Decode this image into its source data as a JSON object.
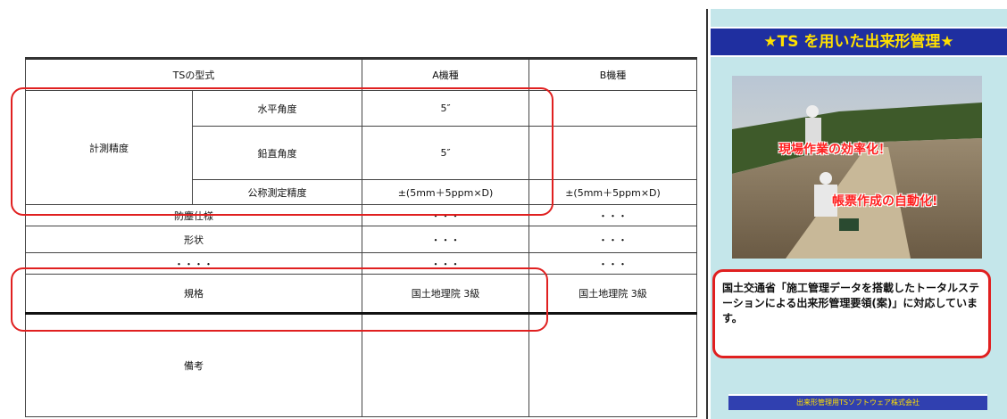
{
  "table": {
    "header": [
      "TSの型式",
      "A機種",
      "B機種"
    ],
    "group_label": "計測精度",
    "accuracy_rows": [
      {
        "label": "水平角度",
        "a": "5″"
      },
      {
        "label": "鉛直角度",
        "a": "5″"
      },
      {
        "label": "公称測定精度",
        "a": "±(5mm＋5ppm×D)",
        "b": "±(5mm＋5ppm×D)"
      }
    ],
    "rows": [
      {
        "label": "防塵仕様",
        "a": "・・・",
        "b": "・・・"
      },
      {
        "label": "形状",
        "a": "・・・",
        "b": "・・・"
      },
      {
        "label": "・・・・",
        "a": "・・・",
        "b": "・・・"
      },
      {
        "label": "規格",
        "a": "国土地理院 3級",
        "b": "国土地理院 3級"
      },
      {
        "label": "備考"
      }
    ]
  },
  "panel": {
    "title": "★TS を用いた出来形管理★",
    "photo_captions": [
      "現場作業の効率化！",
      "帳票作成の自動化!"
    ],
    "note": "国土交通省「施工管理データを搭載したトータルステーションによる出来形管理要領(案)」に対応しています。",
    "footer": "出来形管理用TSソフトウェア株式会社"
  }
}
